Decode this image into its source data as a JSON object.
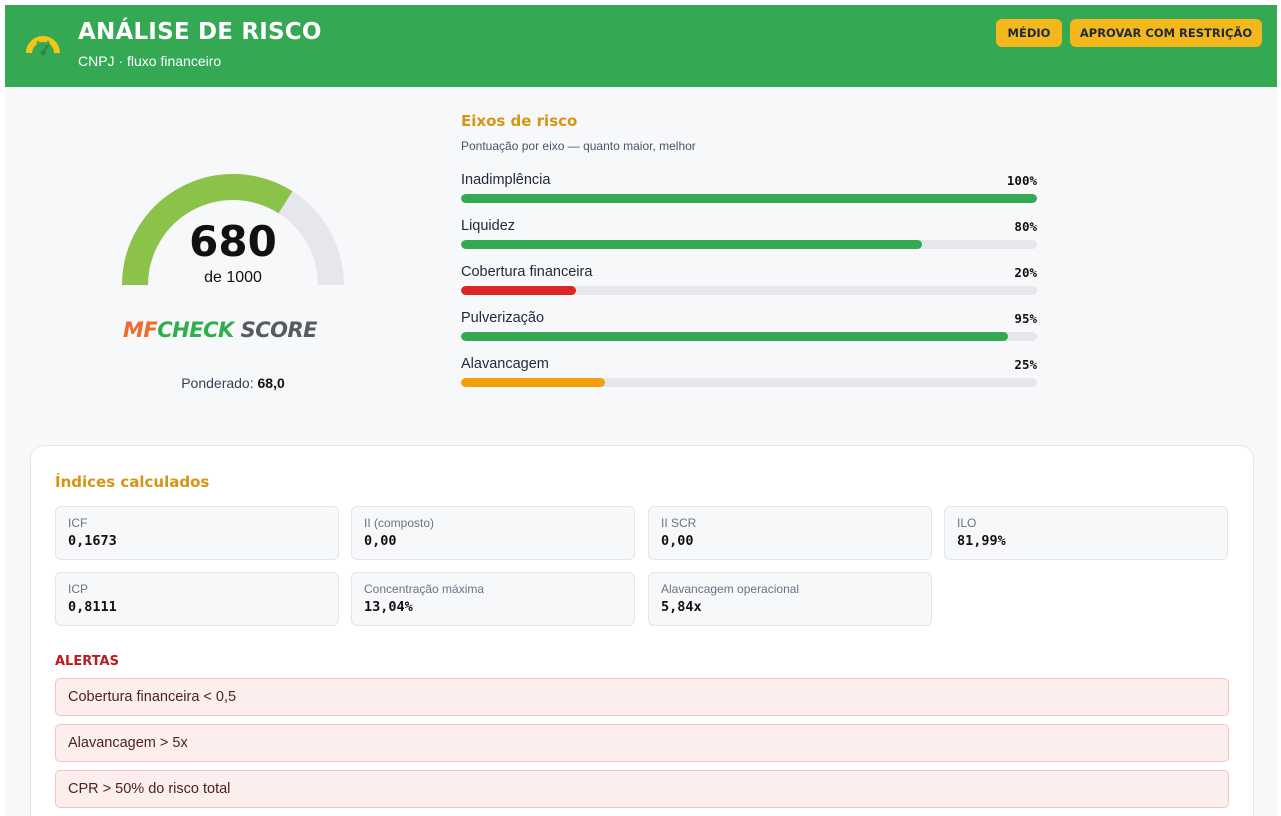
{
  "header": {
    "title": "ANÁLISE DE RISCO",
    "subtitle": "CNPJ · fluxo financeiro",
    "risk_level": "MÉDIO",
    "decision": "APROVAR COM RESTRIÇÃO",
    "icon": "gauge-icon"
  },
  "score": {
    "value": "680",
    "of_label": "de 1000",
    "value_fraction": 0.68,
    "brand": {
      "part1": "MF",
      "part2": "CHECK",
      "part3": " SCORE"
    },
    "weighted_label": "Ponderado:",
    "weighted_value": "68,0"
  },
  "axes": {
    "title": "Eixos de risco",
    "subtitle": "Pontuação por eixo — quanto maior, melhor",
    "items": [
      {
        "label": "Inadimplência",
        "percent_label": "100%",
        "value": 100,
        "color": "#34a853"
      },
      {
        "label": "Liquidez",
        "percent_label": "80%",
        "value": 80,
        "color": "#34a853"
      },
      {
        "label": "Cobertura financeira",
        "percent_label": "20%",
        "value": 20,
        "color": "#dc2626"
      },
      {
        "label": "Pulverização",
        "percent_label": "95%",
        "value": 95,
        "color": "#34a853"
      },
      {
        "label": "Alavancagem",
        "percent_label": "25%",
        "value": 25,
        "color": "#f59e0b"
      }
    ]
  },
  "indices": {
    "title": "Índices calculados",
    "items": [
      {
        "label": "ICF",
        "value": "0,1673"
      },
      {
        "label": "II (composto)",
        "value": "0,00"
      },
      {
        "label": "II SCR",
        "value": "0,00"
      },
      {
        "label": "ILO",
        "value": "81,99%"
      },
      {
        "label": "ICP",
        "value": "0,8111"
      },
      {
        "label": "Concentração máxima",
        "value": "13,04%"
      },
      {
        "label": "Alavancagem operacional",
        "value": "5,84x"
      }
    ]
  },
  "alerts": {
    "title": "ALERTAS",
    "items": [
      "Cobertura financeira < 0,5",
      "Alavancagem > 5x",
      "CPR > 50% do risco total"
    ]
  },
  "colors": {
    "header_bg": "#34a853",
    "accent_yellow": "#f5b81c",
    "section_title": "#d69514",
    "alert_red": "#b91c1c",
    "gauge_fill": "#8bc34a",
    "gauge_track": "#e5e7eb"
  }
}
